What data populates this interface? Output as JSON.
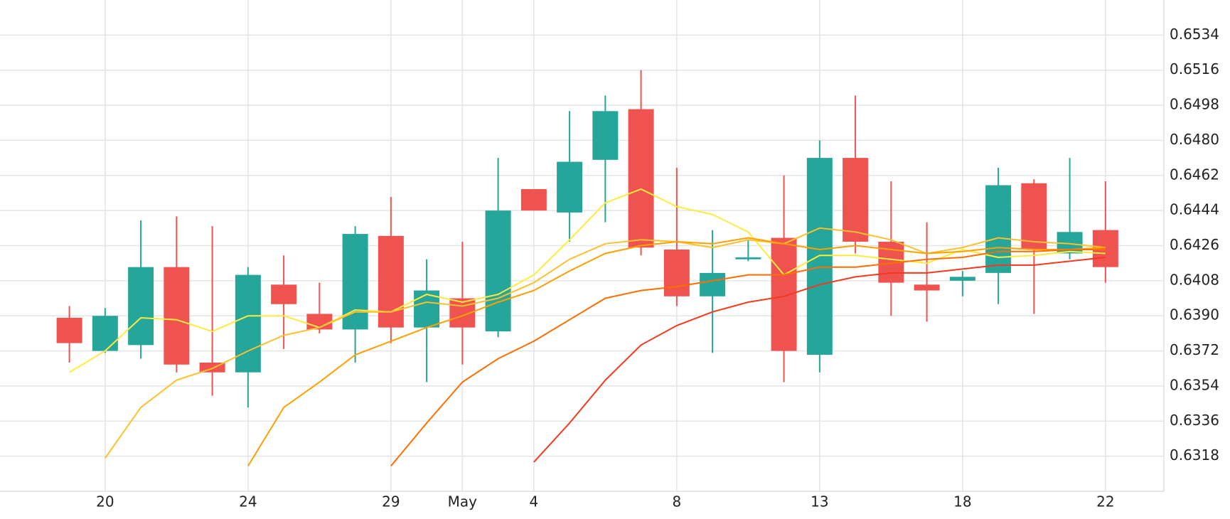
{
  "chart_data": {
    "type": "candlestick",
    "categories": [
      null,
      "20",
      null,
      null,
      null,
      "24",
      null,
      null,
      null,
      "29",
      null,
      "May",
      null,
      "4",
      null,
      null,
      null,
      "8",
      null,
      null,
      null,
      "13",
      null,
      null,
      null,
      "18",
      null,
      null,
      null,
      "22"
    ],
    "open": [
      0.6389,
      0.6372,
      0.6375,
      0.6415,
      0.6366,
      0.6361,
      0.6406,
      0.6391,
      0.6383,
      0.6431,
      0.6384,
      0.6399,
      0.6382,
      0.6455,
      0.6443,
      0.647,
      0.6496,
      0.6424,
      0.64,
      0.6419,
      0.643,
      0.637,
      0.6471,
      0.6428,
      0.6406,
      0.6408,
      0.6412,
      0.6458,
      0.6422,
      0.6434
    ],
    "high": [
      0.6395,
      0.6394,
      0.6439,
      0.6441,
      0.6436,
      0.6415,
      0.6421,
      0.6407,
      0.6436,
      0.6451,
      0.6419,
      0.6428,
      0.6471,
      0.6455,
      0.6495,
      0.6503,
      0.6516,
      0.6466,
      0.6434,
      0.6429,
      0.6462,
      0.648,
      0.6503,
      0.6459,
      0.6438,
      0.6413,
      0.6466,
      0.646,
      0.6471,
      0.6459
    ],
    "low": [
      0.6366,
      0.6371,
      0.6368,
      0.6361,
      0.6349,
      0.6343,
      0.6373,
      0.6381,
      0.6366,
      0.6376,
      0.6356,
      0.6365,
      0.6379,
      0.6444,
      0.6428,
      0.6438,
      0.6421,
      0.6395,
      0.6371,
      0.6418,
      0.6356,
      0.6361,
      0.6422,
      0.639,
      0.6387,
      0.64,
      0.6396,
      0.6391,
      0.6419,
      0.6407
    ],
    "close": [
      0.6376,
      0.639,
      0.6415,
      0.6365,
      0.6361,
      0.6411,
      0.6396,
      0.6383,
      0.6432,
      0.6384,
      0.6403,
      0.6384,
      0.6444,
      0.6444,
      0.6469,
      0.6495,
      0.6425,
      0.64,
      0.6412,
      0.642,
      0.6372,
      0.6471,
      0.6428,
      0.6407,
      0.6403,
      0.641,
      0.6457,
      0.6424,
      0.6433,
      0.6415
    ],
    "up_color": "#26a69a",
    "down_color": "#ef5350",
    "lines": [
      {
        "color": "#ffeb3b",
        "values": [
          0.6361,
          0.6372,
          0.6389,
          0.6388,
          0.6382,
          0.639,
          0.639,
          0.6384,
          0.6393,
          0.6392,
          0.6401,
          0.6397,
          0.6401,
          0.6411,
          0.6429,
          0.6448,
          0.6455,
          0.6446,
          0.6442,
          0.6433,
          0.6411,
          0.6421,
          0.6421,
          0.6419,
          0.6417,
          0.6424,
          0.642,
          0.6421,
          0.6423,
          0.6422
        ]
      },
      {
        "color": "#fbc02d",
        "values": [
          null,
          0.6317,
          0.6343,
          0.6357,
          0.6363,
          0.6372,
          0.638,
          0.6384,
          0.6392,
          0.6392,
          0.6397,
          0.6395,
          0.6399,
          0.6407,
          0.6419,
          0.6427,
          0.6429,
          0.6428,
          0.6425,
          0.6429,
          0.6427,
          0.6435,
          0.6433,
          0.6429,
          0.6422,
          0.6425,
          0.643,
          0.6428,
          0.6427,
          0.6425
        ]
      },
      {
        "color": "#ffa000",
        "values": [
          null,
          null,
          null,
          null,
          null,
          0.6313,
          0.6343,
          0.6356,
          0.637,
          0.6377,
          0.6384,
          0.639,
          0.6397,
          0.6403,
          0.6413,
          0.6422,
          0.6426,
          0.6428,
          0.6427,
          0.643,
          0.6427,
          0.6424,
          0.6426,
          0.6424,
          0.6422,
          0.6423,
          0.6425,
          0.6424,
          0.6424,
          0.6425
        ]
      },
      {
        "color": "#ff6d00",
        "values": [
          null,
          null,
          null,
          null,
          null,
          null,
          null,
          null,
          null,
          0.6313,
          0.6335,
          0.6356,
          0.6368,
          0.6377,
          0.6388,
          0.6399,
          0.6403,
          0.6405,
          0.6408,
          0.6411,
          0.6411,
          0.6415,
          0.6415,
          0.6417,
          0.6419,
          0.642,
          0.6423,
          0.6423,
          0.6424,
          0.6424
        ]
      },
      {
        "color": "#f4391e",
        "values": [
          null,
          null,
          null,
          null,
          null,
          null,
          null,
          null,
          null,
          null,
          null,
          null,
          null,
          0.6315,
          0.6335,
          0.6357,
          0.6375,
          0.6385,
          0.6392,
          0.6397,
          0.64,
          0.6406,
          0.641,
          0.6412,
          0.6412,
          0.6414,
          0.6416,
          0.6416,
          0.6418,
          0.642
        ]
      }
    ],
    "ylim": [
      0.63,
      0.6552
    ],
    "yticks": [
      0.6318,
      0.6336,
      0.6354,
      0.6372,
      {
        "value": 0.639,
        "label": "0.6390"
      },
      0.6408,
      0.6426,
      0.6444,
      0.6462,
      {
        "value": 0.648,
        "label": "0.6480"
      },
      0.6498,
      0.6516,
      0.6534
    ],
    "grid": true
  }
}
